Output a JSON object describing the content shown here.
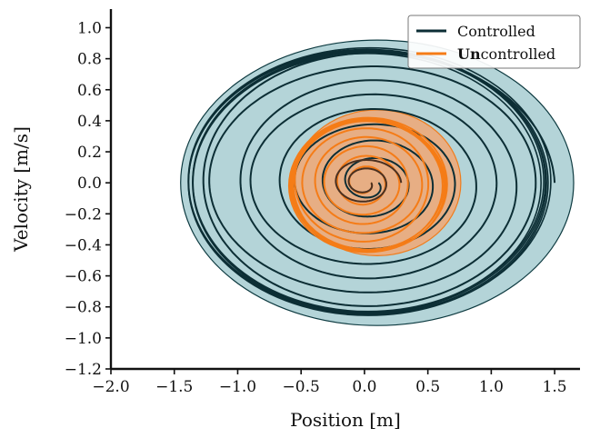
{
  "chart_data": {
    "type": "line",
    "title": "",
    "xlabel": "Position [m]",
    "ylabel": "Velocity [m/s]",
    "xlim": [
      -2.0,
      1.7
    ],
    "ylim": [
      -1.2,
      1.12
    ],
    "xticks": [
      -2.0,
      -1.5,
      -1.0,
      -0.5,
      0.0,
      0.5,
      1.0,
      1.5
    ],
    "xtick_labels": [
      "−2.0",
      "−1.5",
      "−1.0",
      "−0.5",
      "0.0",
      "0.5",
      "1.0",
      "1.5"
    ],
    "yticks": [
      -1.2,
      -1.0,
      -0.8,
      -0.6,
      -0.4,
      -0.2,
      0.0,
      0.2,
      0.4,
      0.6,
      0.8,
      1.0
    ],
    "ytick_labels": [
      "−1.2",
      "−1.0",
      "−0.8",
      "−0.6",
      "−0.4",
      "−0.2",
      "0.0",
      "0.2",
      "0.4",
      "0.6",
      "0.8",
      "1.0"
    ],
    "grid": false,
    "legend_position": "top-right",
    "regions": [
      {
        "for_series": "Controlled",
        "shape": "ellipse",
        "center": [
          0.1,
          0.0
        ],
        "radii": [
          1.55,
          0.92
        ],
        "fill": "#b4d4d8",
        "edge": "#0d3a40"
      },
      {
        "for_series": "Uncontrolled",
        "shape": "ellipse",
        "center": [
          0.1,
          0.0
        ],
        "radii": [
          0.66,
          0.47
        ],
        "fill": "#e7ae84",
        "edge": "#f07c1c"
      }
    ],
    "series": [
      {
        "name": "Controlled",
        "legend_label": [
          "Controlled"
        ],
        "color": "#0c2e35",
        "pattern": "spiral_out",
        "center": [
          0.05,
          0.0
        ],
        "start_radii": [
          0.06,
          0.05
        ],
        "end_radii": [
          1.45,
          0.86
        ],
        "turns": 8,
        "orbit_center": [
          0.02,
          0.0
        ],
        "orbit_radii": [
          1.43,
          0.86
        ],
        "orbit_count": 6
      },
      {
        "name": "Uncontrolled",
        "legend_label": [
          "Un",
          "controlled"
        ],
        "color": "#f57c17",
        "pattern": "spiral_out",
        "center": [
          0.0,
          0.0
        ],
        "start_radii": [
          0.05,
          0.04
        ],
        "end_radii": [
          0.6,
          0.42
        ],
        "turns": 6,
        "orbit_center": [
          0.02,
          -0.02
        ],
        "orbit_radii": [
          0.62,
          0.43
        ],
        "orbit_count": 8,
        "core_color": "#4a3020"
      }
    ]
  }
}
